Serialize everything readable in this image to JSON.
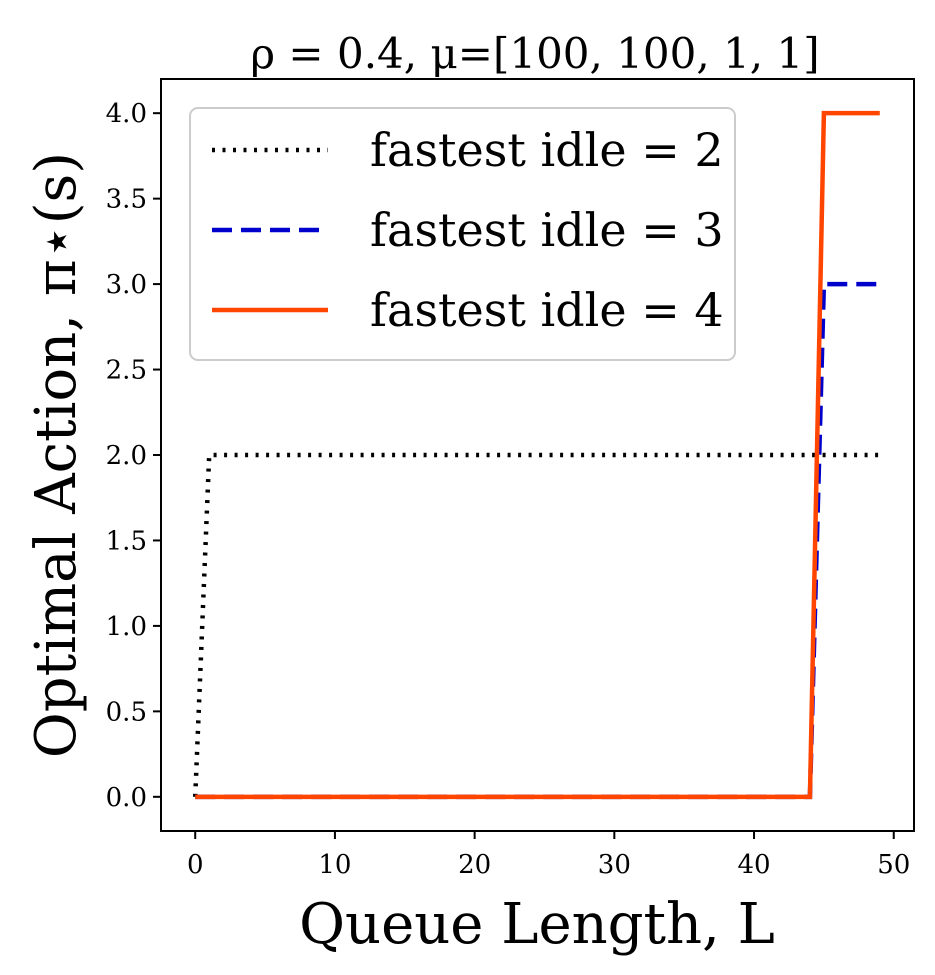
{
  "chart_data": {
    "type": "line",
    "title": "ρ = 0.4, μ=[100, 100, 1, 1]",
    "xlabel": "Queue Length, L",
    "ylabel": "Optimal Action, π⋆(s)",
    "xlim": [
      -2.45,
      51.45
    ],
    "ylim": [
      -0.2,
      4.2
    ],
    "xticks": [
      0,
      10,
      20,
      30,
      40,
      50
    ],
    "xtick_labels": [
      "0",
      "10",
      "20",
      "30",
      "40",
      "50"
    ],
    "yticks": [
      0.0,
      0.5,
      1.0,
      1.5,
      2.0,
      2.5,
      3.0,
      3.5,
      4.0
    ],
    "ytick_labels": [
      "0.0",
      "0.5",
      "1.0",
      "1.5",
      "2.0",
      "2.5",
      "3.0",
      "3.5",
      "4.0"
    ],
    "grid": false,
    "legend_position": "top-left",
    "series": [
      {
        "name": "fastest idle = 2",
        "color": "#000000",
        "style": "dotted",
        "x": [
          0,
          1,
          49
        ],
        "y": [
          0,
          2,
          2
        ]
      },
      {
        "name": "fastest idle = 3",
        "color": "#0000cc",
        "style": "dashed",
        "x": [
          0,
          44,
          45,
          49
        ],
        "y": [
          0,
          0,
          3,
          3
        ]
      },
      {
        "name": "fastest idle = 4",
        "color": "#ff4500",
        "style": "solid",
        "x": [
          0,
          44,
          45,
          49
        ],
        "y": [
          0,
          0,
          4,
          4
        ]
      }
    ]
  }
}
